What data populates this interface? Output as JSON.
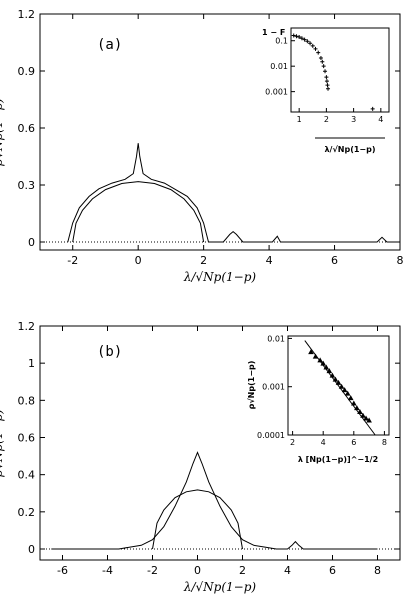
{
  "chart_data": [
    {
      "panel": "(a)",
      "type": "line",
      "xlabel": "λ/√Np(1−p)",
      "ylabel": "ρ√Np(1−p)",
      "xlim": [
        -3,
        8
      ],
      "ylim": [
        0,
        1.2
      ],
      "xticks": [
        "-2",
        "0",
        "2",
        "4",
        "6",
        "8"
      ],
      "yticks": [
        "0",
        "0.3",
        "0.6",
        "0.9",
        "1.2"
      ],
      "series": [
        {
          "kind": "numerical",
          "x": [
            -2.15,
            -2.0,
            -1.8,
            -1.5,
            -1.2,
            -0.8,
            -0.4,
            -0.15,
            -0.05,
            0.0,
            0.05,
            0.15,
            0.4,
            0.8,
            1.2,
            1.5,
            1.8,
            2.0,
            2.15,
            2.3,
            2.6,
            2.8,
            2.9,
            3.0,
            3.2,
            4.1,
            4.25,
            4.35,
            4.5,
            7.3,
            7.45,
            7.6,
            8.0
          ],
          "y": [
            0.0,
            0.1,
            0.18,
            0.24,
            0.28,
            0.31,
            0.33,
            0.36,
            0.45,
            0.52,
            0.45,
            0.36,
            0.33,
            0.31,
            0.27,
            0.24,
            0.18,
            0.1,
            0.0,
            0.0,
            0.0,
            0.04,
            0.055,
            0.04,
            0.0,
            0.0,
            0.03,
            0.0,
            0.0,
            0.0,
            0.025,
            0.0,
            0.0
          ]
        },
        {
          "kind": "semicircle",
          "x": [
            -2.0,
            -1.9,
            -1.7,
            -1.4,
            -1.0,
            -0.5,
            0.0,
            0.5,
            1.0,
            1.4,
            1.7,
            1.9,
            2.0
          ],
          "y": [
            0.0,
            0.099,
            0.167,
            0.227,
            0.276,
            0.308,
            0.318,
            0.308,
            0.276,
            0.227,
            0.167,
            0.099,
            0.0
          ]
        }
      ],
      "inset": {
        "type": "scatter",
        "ylabel": "1 − F",
        "xlabel": "λ/√Np(1−p)",
        "xticks": [
          "1",
          "2",
          "3",
          "4"
        ],
        "yticks": [
          "0.1",
          "0.01",
          "0.001"
        ],
        "xlim": [
          0.7,
          4.3
        ],
        "ylim_log10": [
          -3.8,
          -0.5
        ],
        "x": [
          0.8,
          0.9,
          1.0,
          1.1,
          1.2,
          1.3,
          1.4,
          1.5,
          1.6,
          1.7,
          1.8,
          1.85,
          1.9,
          1.95,
          2.0,
          2.02,
          2.04,
          2.06,
          3.7
        ],
        "y": [
          0.16,
          0.15,
          0.14,
          0.125,
          0.11,
          0.095,
          0.08,
          0.063,
          0.048,
          0.034,
          0.021,
          0.015,
          0.01,
          0.0063,
          0.0037,
          0.0026,
          0.0018,
          0.0013,
          0.00021
        ]
      }
    },
    {
      "panel": "(b)",
      "type": "line",
      "xlabel": "λ/√Np(1−p)",
      "ylabel": "ρ√Np(1−p)",
      "xlim": [
        -7,
        9
      ],
      "ylim": [
        0,
        1.2
      ],
      "xticks": [
        "-6",
        "-4",
        "-2",
        "0",
        "2",
        "4",
        "6",
        "8"
      ],
      "yticks": [
        "0",
        "0.2",
        "0.4",
        "0.6",
        "0.8",
        "1",
        "1.2"
      ],
      "series": [
        {
          "kind": "numerical",
          "x": [
            -6.5,
            -3.5,
            -3.0,
            -2.5,
            -2.0,
            -1.5,
            -1.0,
            -0.5,
            -0.2,
            0.0,
            0.2,
            0.5,
            1.0,
            1.5,
            2.0,
            2.5,
            3.0,
            3.5,
            4.0,
            4.2,
            4.35,
            4.5,
            4.7,
            8.0
          ],
          "y": [
            0.0,
            0.0,
            0.01,
            0.02,
            0.05,
            0.12,
            0.23,
            0.36,
            0.46,
            0.52,
            0.46,
            0.36,
            0.23,
            0.12,
            0.05,
            0.02,
            0.01,
            0.0,
            0.0,
            0.02,
            0.04,
            0.02,
            0.0,
            0.0
          ]
        },
        {
          "kind": "semicircle",
          "x": [
            -2.0,
            -1.8,
            -1.5,
            -1.0,
            -0.5,
            0.0,
            0.5,
            1.0,
            1.5,
            1.8,
            2.0
          ],
          "y": [
            0.0,
            0.139,
            0.21,
            0.276,
            0.308,
            0.318,
            0.308,
            0.276,
            0.21,
            0.139,
            0.0
          ]
        }
      ],
      "inset": {
        "type": "scatter",
        "ylabel": "ρ√Np(1−p)",
        "xlabel": "λ [Np(1−p)]^−1/2",
        "xticks": [
          "2",
          "4",
          "6",
          "8"
        ],
        "yticks": [
          "0.01",
          "0.001",
          "0.0001"
        ],
        "xlim": [
          1.7,
          8.3
        ],
        "ylim_log10": [
          -4.0,
          -1.95
        ],
        "points_x": [
          3.2,
          3.5,
          3.8,
          4.0,
          4.2,
          4.4,
          4.6,
          4.8,
          5.0,
          5.2,
          5.4,
          5.6,
          5.8,
          6.0,
          6.2,
          6.4,
          6.6,
          6.8,
          7.0
        ],
        "points_y": [
          0.0052,
          0.0042,
          0.0035,
          0.003,
          0.0025,
          0.0021,
          0.0017,
          0.0014,
          0.0012,
          0.001,
          0.00085,
          0.00072,
          0.00058,
          0.00045,
          0.00036,
          0.0003,
          0.00025,
          0.00022,
          0.0002
        ],
        "line_x": [
          2.8,
          7.4
        ],
        "line_y": [
          0.009,
          0.0001
        ]
      }
    }
  ]
}
